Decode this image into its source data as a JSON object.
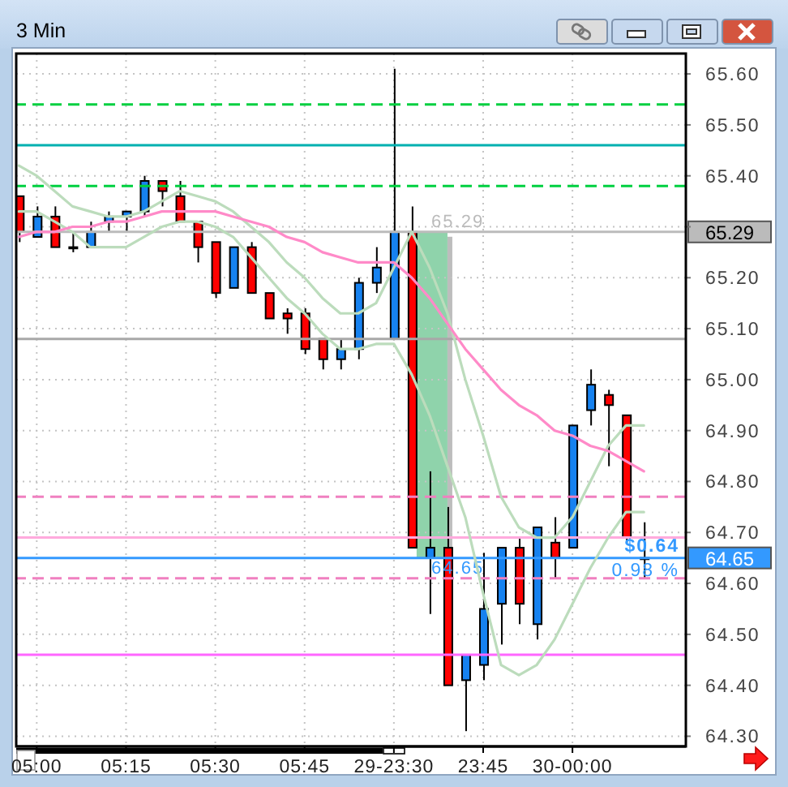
{
  "chart_data": {
    "type": "candlestick",
    "title": "3 Min",
    "categories": [
      null,
      "05:00",
      null,
      null,
      null,
      null,
      "05:15",
      null,
      null,
      null,
      null,
      "05:30",
      null,
      null,
      null,
      null,
      "05:45",
      null,
      null,
      null,
      null,
      "29-23:30",
      null,
      null,
      null,
      null,
      "23:45",
      null,
      null,
      null,
      null,
      "30-00:00",
      null,
      null,
      null,
      null
    ],
    "ohlc": [
      [
        65.36,
        65.36,
        65.27,
        65.29
      ],
      [
        65.28,
        65.34,
        65.28,
        65.32
      ],
      [
        65.32,
        65.34,
        65.26,
        65.26
      ],
      [
        65.26,
        65.29,
        65.25,
        65.26
      ],
      [
        65.26,
        65.31,
        65.26,
        65.29
      ],
      [
        65.31,
        65.33,
        65.29,
        65.32
      ],
      [
        65.32,
        65.33,
        65.29,
        65.33
      ],
      [
        65.33,
        65.4,
        65.32,
        65.39
      ],
      [
        65.39,
        65.39,
        65.34,
        65.37
      ],
      [
        65.36,
        65.39,
        65.31,
        65.31
      ],
      [
        65.31,
        65.31,
        65.23,
        65.26
      ],
      [
        65.27,
        65.27,
        65.16,
        65.17
      ],
      [
        65.18,
        65.26,
        65.18,
        65.26
      ],
      [
        65.26,
        65.27,
        65.17,
        65.17
      ],
      [
        65.17,
        65.17,
        65.12,
        65.12
      ],
      [
        65.13,
        65.14,
        65.09,
        65.12
      ],
      [
        65.13,
        65.14,
        65.05,
        65.06
      ],
      [
        65.08,
        65.08,
        65.02,
        65.04
      ],
      [
        65.04,
        65.08,
        65.02,
        65.06
      ],
      [
        65.06,
        65.2,
        65.04,
        65.19
      ],
      [
        65.19,
        65.26,
        65.17,
        65.22
      ],
      [
        65.08,
        65.61,
        65.08,
        65.29
      ],
      [
        65.29,
        65.34,
        64.67,
        64.67
      ],
      [
        64.65,
        64.82,
        64.54,
        64.67
      ],
      [
        64.67,
        64.75,
        64.4,
        64.4
      ],
      [
        64.41,
        64.46,
        64.31,
        64.46
      ],
      [
        64.44,
        64.66,
        64.41,
        64.55
      ],
      [
        64.56,
        64.67,
        64.48,
        64.67
      ],
      [
        64.67,
        64.69,
        64.52,
        64.56
      ],
      [
        64.52,
        64.71,
        64.49,
        64.71
      ],
      [
        64.68,
        64.73,
        64.61,
        64.65
      ],
      [
        64.67,
        64.91,
        64.67,
        64.91
      ],
      [
        64.94,
        65.02,
        64.91,
        64.99
      ],
      [
        64.97,
        64.98,
        64.83,
        64.95
      ],
      [
        64.93,
        64.93,
        64.68,
        64.69
      ],
      [
        64.65,
        64.72,
        64.61,
        64.65
      ]
    ],
    "colors": [
      "#ff0000",
      "#1682f0",
      "#ff0000",
      "#000000",
      "#1682f0",
      "#1682f0",
      "#1682f0",
      "#1682f0",
      "#ff0000",
      "#ff0000",
      "#ff0000",
      "#ff0000",
      "#1682f0",
      "#ff0000",
      "#ff0000",
      "#ff0000",
      "#ff0000",
      "#ff0000",
      "#1682f0",
      "#1682f0",
      "#1682f0",
      "#1682f0",
      "#ff0000",
      "#1682f0",
      "#ff0000",
      "#1682f0",
      "#1682f0",
      "#1682f0",
      "#ff0000",
      "#1682f0",
      "#ff0000",
      "#1682f0",
      "#1682f0",
      "#ff0000",
      "#ff0000",
      "#000000"
    ],
    "series": [
      {
        "type": "line",
        "color": "#bcdcbc",
        "values": [
          65.42,
          65.4,
          65.37,
          65.34,
          65.33,
          65.32,
          65.32,
          65.33,
          65.35,
          65.37,
          65.36,
          65.35,
          65.33,
          65.3,
          65.27,
          65.23,
          65.2,
          65.16,
          65.13,
          65.13,
          65.15,
          65.22,
          65.29,
          65.22,
          65.13,
          65.0,
          64.89,
          64.77,
          64.71,
          64.69,
          64.69,
          64.73,
          64.8,
          64.87,
          64.91,
          64.91
        ]
      },
      {
        "type": "line",
        "color": "#bcdcbc",
        "values": [
          65.33,
          65.33,
          65.31,
          65.29,
          65.26,
          65.26,
          65.26,
          65.28,
          65.3,
          65.31,
          65.31,
          65.3,
          65.28,
          65.24,
          65.2,
          65.16,
          65.13,
          65.09,
          65.06,
          65.06,
          65.07,
          65.07,
          65.01,
          64.93,
          64.83,
          64.73,
          64.58,
          64.44,
          64.42,
          64.44,
          64.49,
          64.56,
          64.63,
          64.69,
          64.74,
          64.74
        ]
      },
      {
        "type": "line",
        "color": "#ff8ac8",
        "values": [
          65.28,
          65.29,
          65.29,
          65.3,
          65.3,
          65.31,
          65.31,
          65.32,
          65.33,
          65.33,
          65.33,
          65.33,
          65.32,
          65.31,
          65.3,
          65.28,
          65.27,
          65.25,
          65.24,
          65.23,
          65.23,
          65.23,
          65.2,
          65.16,
          65.11,
          65.06,
          65.02,
          64.98,
          64.95,
          64.93,
          64.9,
          64.89,
          64.87,
          64.86,
          64.84,
          64.82
        ]
      }
    ],
    "ylim": [
      64.28,
      65.64
    ],
    "yticks": [
      {
        "value": 64.3,
        "label": "64.30"
      },
      {
        "value": 64.4,
        "label": "64.40"
      },
      {
        "value": 64.5,
        "label": "64.50"
      },
      {
        "value": 64.6,
        "label": "64.60"
      },
      {
        "value": 64.7,
        "label": "64.70"
      },
      {
        "value": 64.8,
        "label": "64.80"
      },
      {
        "value": 64.9,
        "label": "64.90"
      },
      {
        "value": 65.0,
        "label": "65.00"
      },
      {
        "value": 65.1,
        "label": "65.10"
      },
      {
        "value": 65.2,
        "label": "65.20"
      },
      {
        "value": 65.3,
        "label": null
      },
      {
        "value": 65.4,
        "label": "65.40"
      },
      {
        "value": 65.5,
        "label": "65.50"
      },
      {
        "value": 65.6,
        "label": "65.60"
      }
    ],
    "grid": true,
    "ref_lines": [
      {
        "axis": "y",
        "value": 65.54,
        "color": "#00d040",
        "line_style": "dashed"
      },
      {
        "axis": "y",
        "value": 65.46,
        "color": "#00b0b0"
      },
      {
        "axis": "y",
        "value": 65.38,
        "color": "#00d040",
        "line_style": "dashed"
      },
      {
        "axis": "y",
        "value": 65.29,
        "label": "65.29",
        "color": "#bbbbbb"
      },
      {
        "axis": "y",
        "value": 65.08,
        "color": "#a8a8a8"
      },
      {
        "axis": "y",
        "value": 64.77,
        "color": "#f080c0",
        "line_style": "dashed"
      },
      {
        "axis": "y",
        "value": 64.69,
        "color": "#ffaadd"
      },
      {
        "axis": "y",
        "value": 64.65,
        "label": "64.65",
        "color": "#3399ff"
      },
      {
        "axis": "y",
        "value": 64.61,
        "color": "#f080c0",
        "line_style": "dashed"
      },
      {
        "axis": "y",
        "value": 64.46,
        "color": "#ff66ff"
      }
    ],
    "annotations": [
      "$0.64",
      "0.98 %"
    ]
  }
}
